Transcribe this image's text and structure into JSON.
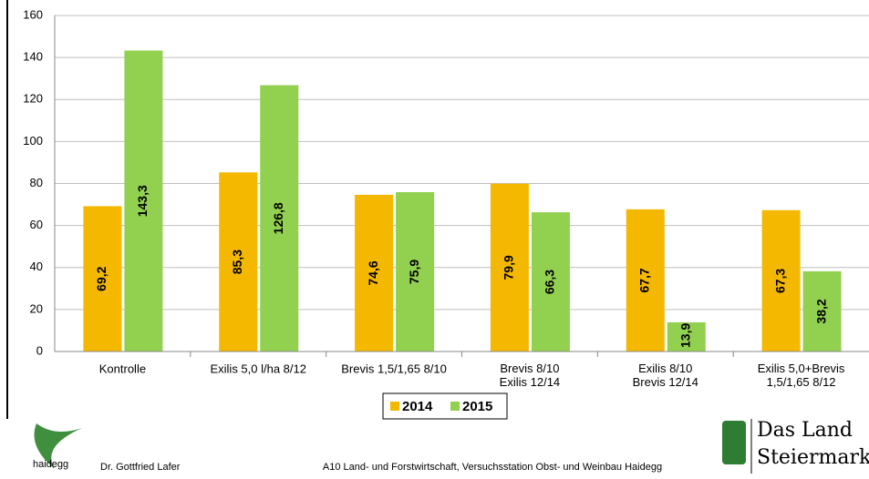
{
  "chart_data": {
    "type": "bar",
    "categories": [
      "Kontrolle",
      "Exilis 5,0 l/ha 8/12",
      "Brevis 1,5/1,65 8/10",
      "Brevis 8/10\nExilis 12/14",
      "Exilis 8/10\nBrevis 12/14",
      "Exilis 5,0+Brevis\n1,5/1,65 8/12"
    ],
    "series": [
      {
        "name": "2014",
        "color": "#f5b800",
        "values": [
          69.2,
          85.3,
          74.6,
          79.9,
          67.7,
          67.3
        ],
        "value_labels": [
          "69,2",
          "85,3",
          "74,6",
          "79,9",
          "67,7",
          "67,3"
        ]
      },
      {
        "name": "2015",
        "color": "#92d050",
        "values": [
          143.3,
          126.8,
          75.9,
          66.3,
          13.9,
          38.2
        ],
        "value_labels": [
          "143,3",
          "126,8",
          "75,9",
          "66,3",
          "13,9",
          "38,2"
        ]
      }
    ],
    "ylim": [
      0,
      160
    ],
    "yticks": [
      0,
      20,
      40,
      60,
      80,
      100,
      120,
      140,
      160
    ],
    "grid": true,
    "legend": "bottom"
  },
  "footer": {
    "logo_left": "haidegg",
    "author": "Dr. Gottfried Lafer",
    "institution": "A10 Land- und Forstwirtschaft, Versuchsstation Obst- und Weinbau Haidegg",
    "logo_right": [
      "Das Land",
      "Steiermark"
    ]
  }
}
